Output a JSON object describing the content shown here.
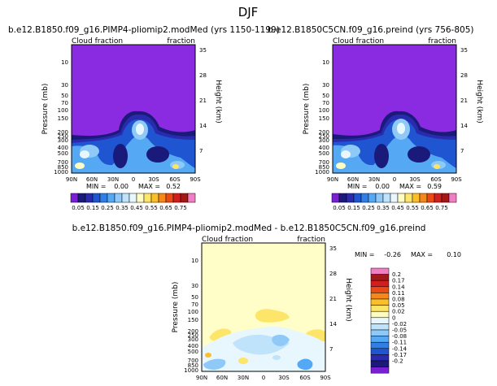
{
  "title": "DJF",
  "colors": {
    "background": "#ffffff",
    "left_fill": "#8a2be2",
    "diff_fill": "#fffec8",
    "seq_palette": [
      "#7a1fd4",
      "#1a1a7a",
      "#2a2aaf",
      "#1f55d0",
      "#2f7fe6",
      "#55a9f4",
      "#8ec9f7",
      "#bfe3fb",
      "#e8f6fd",
      "#fffcc2",
      "#fde56a",
      "#fbbf2a",
      "#f6871a",
      "#ec4a14",
      "#d11f1f",
      "#a81515",
      "#ef7fc2"
    ],
    "diff_palette": [
      "#ef7fc2",
      "#a01818",
      "#d11f1f",
      "#ec4a14",
      "#f6871a",
      "#fbbf2a",
      "#fde56a",
      "#fffcc2",
      "#e8f6fd",
      "#bfe3fb",
      "#8ec9f7",
      "#55a9f4",
      "#2f7fe6",
      "#1f55d0",
      "#2a2aaf",
      "#1a1a7a",
      "#7a1fd4"
    ]
  },
  "chart_data": [
    {
      "type": "heatmap",
      "id": "top-left",
      "title": "b.e12.B1850.f09_g16.PIMP4-pliomip2.modMed (yrs 1150-1199)",
      "corner_left": "Cloud fraction",
      "corner_right": "fraction",
      "ylabel": "Pressure (mb)",
      "ylabel_right": "Height (km)",
      "x_ticks": [
        "90N",
        "60N",
        "30N",
        "0",
        "30S",
        "60S",
        "90S"
      ],
      "y_ticks": [
        "10",
        "30",
        "50",
        "70",
        "100",
        "150",
        "200",
        "250",
        "300",
        "400",
        "500",
        "700",
        "850",
        "1000"
      ],
      "y_values": [
        10,
        30,
        50,
        70,
        100,
        150,
        200,
        250,
        300,
        400,
        500,
        700,
        850,
        1000
      ],
      "ylim": [
        5,
        1000
      ],
      "height_ticks": [
        "35",
        "28",
        "21",
        "14",
        "7"
      ],
      "height_values": [
        35,
        28,
        21,
        14,
        7
      ],
      "min_label": "MIN =",
      "min_value": "0.00",
      "max_label": "MAX =",
      "max_value": "0.52",
      "colorbar": {
        "labels": [
          "0.05",
          "0.15",
          "0.25",
          "0.35",
          "0.45",
          "0.55",
          "0.65",
          "0.75"
        ],
        "label_every": 2,
        "n_boxes": 16
      }
    },
    {
      "type": "heatmap",
      "id": "top-right",
      "title": "b.e12.B1850C5CN.f09_g16.preind (yrs 756-805)",
      "corner_left": "Cloud fraction",
      "corner_right": "fraction",
      "ylabel": "Pressure (mb)",
      "ylabel_right": "Height (km)",
      "x_ticks": [
        "90N",
        "60N",
        "30N",
        "0",
        "30S",
        "60S",
        "90S"
      ],
      "y_ticks": [
        "10",
        "30",
        "50",
        "70",
        "100",
        "150",
        "200",
        "250",
        "300",
        "400",
        "500",
        "700",
        "850",
        "1000"
      ],
      "y_values": [
        10,
        30,
        50,
        70,
        100,
        150,
        200,
        250,
        300,
        400,
        500,
        700,
        850,
        1000
      ],
      "ylim": [
        5,
        1000
      ],
      "height_ticks": [
        "35",
        "28",
        "21",
        "14",
        "7"
      ],
      "height_values": [
        35,
        28,
        21,
        14,
        7
      ],
      "min_label": "MIN =",
      "min_value": "0.00",
      "max_label": "MAX =",
      "max_value": "0.59",
      "colorbar": {
        "labels": [
          "0.05",
          "0.15",
          "0.25",
          "0.35",
          "0.45",
          "0.55",
          "0.65",
          "0.75"
        ],
        "label_every": 2,
        "n_boxes": 16
      }
    },
    {
      "type": "heatmap",
      "id": "bottom-diff",
      "title": "b.e12.B1850.f09_g16.PIMP4-pliomip2.modMed - b.e12.B1850C5CN.f09_g16.preind",
      "corner_left": "Cloud fraction",
      "corner_right": "fraction",
      "ylabel": "Pressure (mb)",
      "ylabel_right": "Height (km)",
      "x_ticks": [
        "90N",
        "60N",
        "30N",
        "0",
        "30S",
        "60S",
        "90S"
      ],
      "y_ticks": [
        "10",
        "30",
        "50",
        "70",
        "100",
        "150",
        "200",
        "250",
        "300",
        "400",
        "500",
        "700",
        "850",
        "1000"
      ],
      "y_values": [
        10,
        30,
        50,
        70,
        100,
        150,
        200,
        250,
        300,
        400,
        500,
        700,
        850,
        1000
      ],
      "ylim": [
        5,
        1000
      ],
      "height_ticks": [
        "35",
        "28",
        "21",
        "14",
        "7"
      ],
      "height_values": [
        35,
        28,
        21,
        14,
        7
      ],
      "min_label": "MIN =",
      "min_value": "-0.26",
      "max_label": "MAX =",
      "max_value": "0.10",
      "colorbar": {
        "orientation": "vertical",
        "labels": [
          "0.2",
          "0.17",
          "0.14",
          "0.11",
          "0.08",
          "0.05",
          "0.02",
          "0",
          "-0.02",
          "-0.05",
          "-0.08",
          "-0.11",
          "-0.14",
          "-0.17",
          "-0.2"
        ]
      }
    }
  ]
}
